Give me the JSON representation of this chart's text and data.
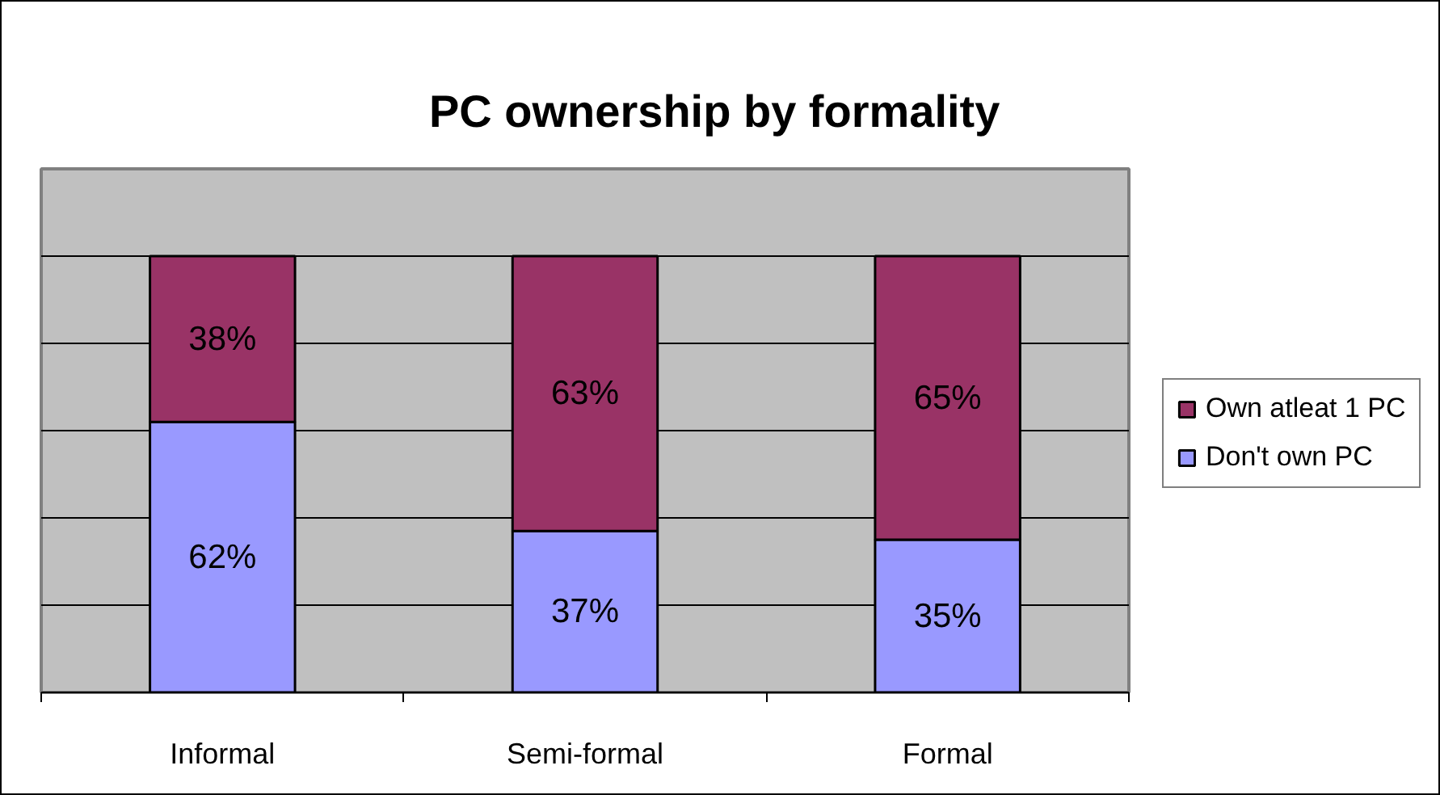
{
  "chart_data": {
    "type": "bar",
    "title": "PC ownership by formality",
    "categories": [
      "Informal",
      "Semi-formal",
      "Formal"
    ],
    "stacked": true,
    "series": [
      {
        "name": "Don't own PC",
        "color": "#9999ff",
        "values": [
          62,
          37,
          35
        ],
        "value_labels": [
          "62%",
          "37%",
          "35%"
        ]
      },
      {
        "name": "Own atleat 1 PC",
        "color": "#993366",
        "values": [
          38,
          63,
          65
        ],
        "value_labels": [
          "38%",
          "63%",
          "65%"
        ]
      }
    ],
    "ylim": [
      0,
      120
    ],
    "yticks": [
      {
        "value": 0,
        "label": null
      },
      {
        "value": 20,
        "label": null
      },
      {
        "value": 40,
        "label": null
      },
      {
        "value": 60,
        "label": null
      },
      {
        "value": 80,
        "label": null
      },
      {
        "value": 100,
        "label": null
      },
      {
        "value": 120,
        "label": null
      }
    ],
    "grid": "y",
    "legend": "right",
    "tick_labels": "x"
  }
}
